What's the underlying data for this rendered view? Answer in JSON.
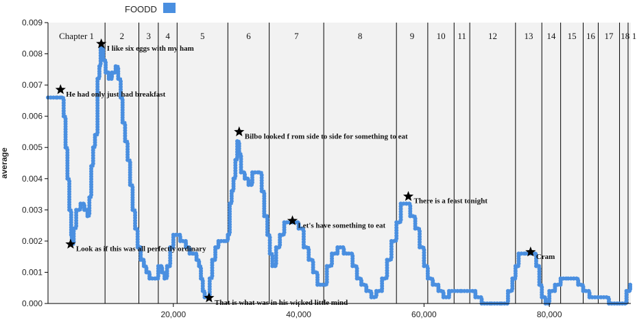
{
  "chart_data": {
    "type": "line",
    "title": "",
    "xlabel": "",
    "ylabel": "average",
    "xlim": [
      0,
      93000
    ],
    "ylim": [
      0,
      0.009
    ],
    "x_ticks": [
      20000,
      40000,
      60000,
      80000
    ],
    "x_tick_labels": [
      "20,000",
      "40,000",
      "60,000",
      "80,000"
    ],
    "y_ticks": [
      0,
      0.001,
      0.002,
      0.003,
      0.004,
      0.005,
      0.006,
      0.007,
      0.008,
      0.009
    ],
    "y_tick_labels": [
      "0.000",
      "0.001",
      "0.002",
      "0.003",
      "0.004",
      "0.005",
      "0.006",
      "0.007",
      "0.008",
      "0.009"
    ],
    "grid": false,
    "legend": {
      "position": "top-left",
      "entries": [
        {
          "name": "FOODD",
          "color": "#4a8fe0"
        }
      ]
    },
    "colors": {
      "series": "#4a8fe0",
      "plot_bg": "#f2f2f2",
      "divider": "#000000",
      "marker": "#000000"
    },
    "chapters": [
      {
        "label": "Chapter 1",
        "start": 0,
        "end": 9100
      },
      {
        "label": "2",
        "start": 9100,
        "end": 14500
      },
      {
        "label": "3",
        "start": 14500,
        "end": 17600
      },
      {
        "label": "4",
        "start": 17600,
        "end": 20600
      },
      {
        "label": "5",
        "start": 20600,
        "end": 28700
      },
      {
        "label": "6",
        "start": 28700,
        "end": 35300
      },
      {
        "label": "7",
        "start": 35300,
        "end": 44000
      },
      {
        "label": "8",
        "start": 44000,
        "end": 55600
      },
      {
        "label": "9",
        "start": 55600,
        "end": 60600
      },
      {
        "label": "10",
        "start": 60600,
        "end": 64800
      },
      {
        "label": "11",
        "start": 64800,
        "end": 67300
      },
      {
        "label": "12",
        "start": 67300,
        "end": 74600
      },
      {
        "label": "13",
        "start": 74600,
        "end": 78800
      },
      {
        "label": "14",
        "start": 78800,
        "end": 81800
      },
      {
        "label": "15",
        "start": 81800,
        "end": 85400
      },
      {
        "label": "16",
        "start": 85400,
        "end": 87800
      },
      {
        "label": "17",
        "start": 87800,
        "end": 91200
      },
      {
        "label": "18",
        "start": 91200,
        "end": 93000
      },
      {
        "label": "1",
        "start": 93000,
        "end": 93000
      }
    ],
    "series": [
      {
        "name": "FOODD",
        "points": [
          [
            0,
            0.0066
          ],
          [
            1500,
            0.0066
          ],
          [
            2200,
            0.0066
          ],
          [
            2500,
            0.006
          ],
          [
            2800,
            0.005
          ],
          [
            3100,
            0.004
          ],
          [
            3400,
            0.003
          ],
          [
            3700,
            0.0022
          ],
          [
            3800,
            0.0019
          ],
          [
            4100,
            0.0024
          ],
          [
            4500,
            0.003
          ],
          [
            5200,
            0.0032
          ],
          [
            5800,
            0.003
          ],
          [
            6300,
            0.0028
          ],
          [
            6600,
            0.0034
          ],
          [
            6900,
            0.0044
          ],
          [
            7200,
            0.005
          ],
          [
            7500,
            0.0054
          ],
          [
            7900,
            0.0072
          ],
          [
            8200,
            0.0076
          ],
          [
            8400,
            0.0082
          ],
          [
            8800,
            0.0078
          ],
          [
            9200,
            0.0074
          ],
          [
            9700,
            0.0072
          ],
          [
            10200,
            0.0074
          ],
          [
            10800,
            0.0076
          ],
          [
            11200,
            0.0072
          ],
          [
            11600,
            0.0066
          ],
          [
            11900,
            0.0058
          ],
          [
            12300,
            0.0052
          ],
          [
            12700,
            0.0046
          ],
          [
            13100,
            0.0038
          ],
          [
            13500,
            0.003
          ],
          [
            13900,
            0.0024
          ],
          [
            14300,
            0.0018
          ],
          [
            14800,
            0.0014
          ],
          [
            15300,
            0.0012
          ],
          [
            15700,
            0.001
          ],
          [
            16200,
            0.0008
          ],
          [
            17100,
            0.0008
          ],
          [
            17600,
            0.0012
          ],
          [
            18200,
            0.001
          ],
          [
            18600,
            0.0008
          ],
          [
            19000,
            0.0012
          ],
          [
            19500,
            0.0018
          ],
          [
            20000,
            0.0022
          ],
          [
            20600,
            0.0022
          ],
          [
            21100,
            0.002
          ],
          [
            22000,
            0.0018
          ],
          [
            22600,
            0.0016
          ],
          [
            23200,
            0.0016
          ],
          [
            23700,
            0.0014
          ],
          [
            24100,
            0.0012
          ],
          [
            24400,
            0.0008
          ],
          [
            24700,
            0.0004
          ],
          [
            25000,
            0.0002
          ],
          [
            25400,
            0.0002
          ],
          [
            25800,
            0.0008
          ],
          [
            26200,
            0.0014
          ],
          [
            26700,
            0.0018
          ],
          [
            27200,
            0.002
          ],
          [
            28400,
            0.002
          ],
          [
            28700,
            0.0022
          ],
          [
            29000,
            0.0032
          ],
          [
            29300,
            0.0036
          ],
          [
            29600,
            0.004
          ],
          [
            29900,
            0.0046
          ],
          [
            30200,
            0.0052
          ],
          [
            30500,
            0.0048
          ],
          [
            30800,
            0.0042
          ],
          [
            31400,
            0.004
          ],
          [
            32000,
            0.0038
          ],
          [
            32600,
            0.0042
          ],
          [
            33700,
            0.0042
          ],
          [
            34100,
            0.0036
          ],
          [
            34500,
            0.0028
          ],
          [
            35000,
            0.0022
          ],
          [
            35400,
            0.0016
          ],
          [
            35800,
            0.0012
          ],
          [
            36400,
            0.0018
          ],
          [
            37000,
            0.0022
          ],
          [
            37700,
            0.0026
          ],
          [
            38600,
            0.0026
          ],
          [
            39400,
            0.0026
          ],
          [
            40000,
            0.0024
          ],
          [
            40800,
            0.0018
          ],
          [
            41600,
            0.0014
          ],
          [
            42300,
            0.001
          ],
          [
            43000,
            0.0006
          ],
          [
            43800,
            0.0006
          ],
          [
            44500,
            0.0012
          ],
          [
            45300,
            0.0016
          ],
          [
            46200,
            0.0018
          ],
          [
            47200,
            0.0016
          ],
          [
            48000,
            0.0016
          ],
          [
            48600,
            0.0012
          ],
          [
            49300,
            0.0008
          ],
          [
            50000,
            0.0006
          ],
          [
            50800,
            0.0004
          ],
          [
            51600,
            0.0002
          ],
          [
            52400,
            0.0004
          ],
          [
            53300,
            0.0008
          ],
          [
            54100,
            0.0014
          ],
          [
            54800,
            0.002
          ],
          [
            55600,
            0.0026
          ],
          [
            56300,
            0.0032
          ],
          [
            57200,
            0.0032
          ],
          [
            57800,
            0.0028
          ],
          [
            58600,
            0.0024
          ],
          [
            59300,
            0.0018
          ],
          [
            60000,
            0.0012
          ],
          [
            60600,
            0.0008
          ],
          [
            61400,
            0.0006
          ],
          [
            62300,
            0.0004
          ],
          [
            63100,
            0.0002
          ],
          [
            64000,
            0.0004
          ],
          [
            64900,
            0.0004
          ],
          [
            66000,
            0.0004
          ],
          [
            67300,
            0.0004
          ],
          [
            68200,
            0.0002
          ],
          [
            69200,
            0.0
          ],
          [
            70800,
            0.0
          ],
          [
            72400,
            0.0
          ],
          [
            73400,
            0.0004
          ],
          [
            74100,
            0.0008
          ],
          [
            74600,
            0.0012
          ],
          [
            75100,
            0.0016
          ],
          [
            76200,
            0.0016
          ],
          [
            77300,
            0.0016
          ],
          [
            77900,
            0.0012
          ],
          [
            78400,
            0.0006
          ],
          [
            78800,
            0.0002
          ],
          [
            79400,
            0.0
          ],
          [
            80000,
            0.0004
          ],
          [
            80900,
            0.0006
          ],
          [
            81800,
            0.0008
          ],
          [
            83000,
            0.0008
          ],
          [
            83900,
            0.0008
          ],
          [
            84600,
            0.0006
          ],
          [
            85400,
            0.0004
          ],
          [
            86400,
            0.0002
          ],
          [
            87800,
            0.0002
          ],
          [
            89500,
            0.0
          ],
          [
            91200,
            0.0
          ],
          [
            92300,
            0.0004
          ],
          [
            92900,
            0.0006
          ]
        ]
      }
    ],
    "annotations": [
      {
        "x": 2000,
        "y": 0.00685,
        "text": "He had only just had breakfast"
      },
      {
        "x": 8500,
        "y": 0.00832,
        "text": "I like six eggs with my ham"
      },
      {
        "x": 3600,
        "y": 0.0019,
        "text": "Look as if this was all perfectly ordinary"
      },
      {
        "x": 25700,
        "y": 0.00018,
        "text": "That is what was in his wicked little mind"
      },
      {
        "x": 30500,
        "y": 0.0055,
        "text": "Bilbo looked f rom side to side for something to eat"
      },
      {
        "x": 39000,
        "y": 0.00265,
        "text": "Let's have something to eat"
      },
      {
        "x": 57500,
        "y": 0.00343,
        "text": "There is a feast tonight"
      },
      {
        "x": 77000,
        "y": 0.00165,
        "text": "Cram"
      }
    ]
  }
}
